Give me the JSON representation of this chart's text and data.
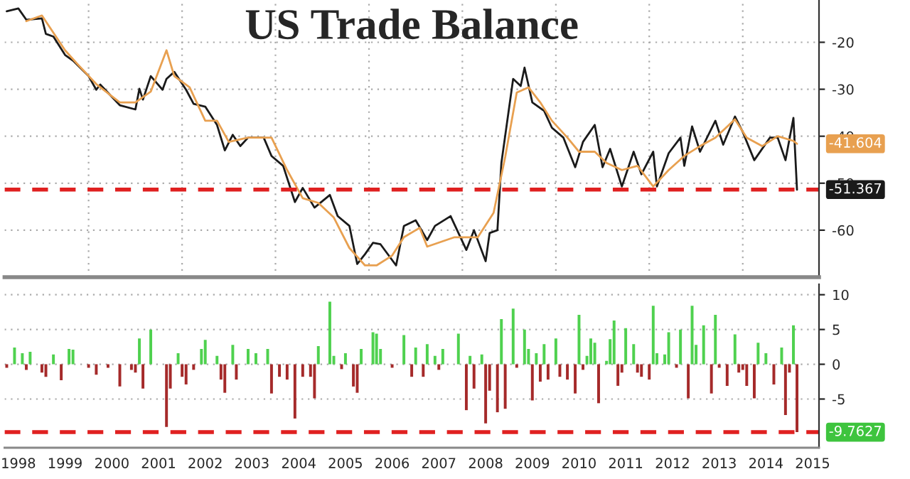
{
  "chart_data": [
    {
      "type": "line",
      "title": "US Trade Balance",
      "tick_labels": "y",
      "grid": true,
      "xlim": [
        "1998-03-15",
        "2015-08-20"
      ],
      "xticks": [
        {
          "value": "2000-01-01",
          "label": null
        },
        {
          "value": "2002-01-01",
          "label": null
        },
        {
          "value": "2004-01-01",
          "label": null
        },
        {
          "value": "2006-01-01",
          "label": null
        },
        {
          "value": "2008-01-01",
          "label": null
        },
        {
          "value": "2010-01-01",
          "label": null
        },
        {
          "value": "2012-01-01",
          "label": null
        },
        {
          "value": "2014-01-01",
          "label": null
        }
      ],
      "ylim": [
        -70,
        -11
      ],
      "yticks": [
        -60,
        -50,
        -40,
        -30,
        -20
      ],
      "series": [
        {
          "color": "#1a1a1a",
          "x": [
            "1998-04",
            "1998-07",
            "1998-09",
            "1999-01",
            "1999-02",
            "1999-04",
            "1999-07",
            "1999-09",
            "2000-01",
            "2000-03",
            "2000-04",
            "2000-09",
            "2001-01",
            "2001-02",
            "2001-03",
            "2001-05",
            "2001-08",
            "2001-09",
            "2001-11",
            "2002-02",
            "2002-04",
            "2002-07",
            "2002-10",
            "2002-12",
            "2003-02",
            "2003-04",
            "2003-06",
            "2003-10",
            "2003-12",
            "2004-03",
            "2004-06",
            "2004-08",
            "2004-11",
            "2005-03",
            "2005-05",
            "2005-08",
            "2005-10",
            "2005-12",
            "2006-02",
            "2006-04",
            "2006-08",
            "2006-10",
            "2007-01",
            "2007-04",
            "2007-06",
            "2007-10",
            "2008-02",
            "2008-04",
            "2008-07",
            "2008-08",
            "2008-10",
            "2008-11",
            "2009-02",
            "2009-04",
            "2009-05",
            "2009-07",
            "2009-10",
            "2009-12",
            "2010-03",
            "2010-06",
            "2010-08",
            "2010-11",
            "2011-01",
            "2011-03",
            "2011-06",
            "2011-09",
            "2011-11",
            "2012-02",
            "2012-03",
            "2012-06",
            "2012-09",
            "2012-10",
            "2012-12",
            "2013-02",
            "2013-06",
            "2013-08",
            "2013-11",
            "2014-01",
            "2014-04",
            "2014-08",
            "2014-10",
            "2014-12",
            "2015-02",
            "2015-03"
          ],
          "values": [
            -13.4,
            -12.8,
            -15.2,
            -14.9,
            -18.2,
            -18.8,
            -22.7,
            -23.9,
            -27.2,
            -30.1,
            -29.0,
            -33.4,
            -34.3,
            -29.9,
            -32.2,
            -27.2,
            -30.1,
            -27.8,
            -26.3,
            -30.1,
            -33.1,
            -33.7,
            -37.6,
            -43.0,
            -39.7,
            -42.1,
            -40.3,
            -40.3,
            -44.2,
            -46.3,
            -54.0,
            -51.0,
            -55.2,
            -52.5,
            -57.0,
            -59.1,
            -67.2,
            -65.1,
            -62.7,
            -63.0,
            -67.5,
            -59.1,
            -57.9,
            -62.1,
            -59.1,
            -57.0,
            -64.2,
            -60.0,
            -66.6,
            -60.6,
            -60.0,
            -45.7,
            -27.8,
            -29.3,
            -25.4,
            -32.8,
            -34.6,
            -38.2,
            -40.3,
            -46.6,
            -41.2,
            -37.6,
            -46.6,
            -42.7,
            -50.7,
            -43.3,
            -48.1,
            -43.3,
            -50.7,
            -43.6,
            -40.3,
            -46.3,
            -37.9,
            -43.3,
            -36.7,
            -41.8,
            -35.8,
            -39.1,
            -45.1,
            -40.3,
            -40.3,
            -45.1,
            -36.1,
            -51.367
          ]
        },
        {
          "color": "#e8a050",
          "x": [
            "1998-09",
            "1999-01",
            "1999-07",
            "1999-10",
            "2000-03",
            "2000-09",
            "2001-01",
            "2001-05",
            "2001-09",
            "2001-11",
            "2002-03",
            "2002-07",
            "2002-10",
            "2003-01",
            "2003-06",
            "2003-12",
            "2004-04",
            "2004-08",
            "2004-12",
            "2005-04",
            "2005-08",
            "2005-12",
            "2006-03",
            "2006-07",
            "2006-10",
            "2007-02",
            "2007-04",
            "2007-11",
            "2008-05",
            "2008-09",
            "2008-12",
            "2009-03",
            "2009-06",
            "2009-09",
            "2009-12",
            "2010-04",
            "2010-07",
            "2010-11",
            "2011-02",
            "2011-06",
            "2011-10",
            "2012-02",
            "2012-06",
            "2012-10",
            "2013-02",
            "2013-06",
            "2013-11",
            "2014-02",
            "2014-06",
            "2014-10",
            "2015-02",
            "2015-03"
          ],
          "values": [
            -15.5,
            -14.3,
            -21.7,
            -24.5,
            -28.9,
            -32.8,
            -32.8,
            -30.5,
            -21.7,
            -27.2,
            -29.6,
            -36.7,
            -36.7,
            -41.2,
            -40.3,
            -40.3,
            -47.2,
            -53.2,
            -54.2,
            -57.3,
            -63.8,
            -67.5,
            -67.5,
            -65.4,
            -61.5,
            -59.5,
            -63.5,
            -61.5,
            -61.5,
            -56.3,
            -44.4,
            -30.7,
            -29.6,
            -32.8,
            -36.7,
            -40.3,
            -43.3,
            -43.3,
            -45.7,
            -47.2,
            -46.3,
            -50.7,
            -47.2,
            -44.2,
            -42.1,
            -40.3,
            -36.4,
            -40.3,
            -42.1,
            -40.0,
            -41.0,
            -41.604
          ]
        }
      ],
      "ref_lines": [
        {
          "axis": "y",
          "value": -51.367,
          "color": "#e02020",
          "line_style": "dashed"
        }
      ],
      "annotations": [
        {
          "text": "-51.367",
          "x": "2015-03",
          "y": -51.367
        },
        {
          "text": "-41.604",
          "x": "2015-03",
          "y": -41.604
        }
      ]
    },
    {
      "type": "bar",
      "grid": "y",
      "xlim": [
        "1998-03-15",
        "2015-08-20"
      ],
      "xticks": [
        {
          "value": "1998-07-01",
          "label": "1998"
        },
        {
          "value": "1999-07-01",
          "label": "1999"
        },
        {
          "value": "2000-07-01",
          "label": "2000"
        },
        {
          "value": "2001-07-01",
          "label": "2001"
        },
        {
          "value": "2002-07-01",
          "label": "2002"
        },
        {
          "value": "2003-07-01",
          "label": "2003"
        },
        {
          "value": "2004-07-01",
          "label": "2004"
        },
        {
          "value": "2005-07-01",
          "label": "2005"
        },
        {
          "value": "2006-07-01",
          "label": "2006"
        },
        {
          "value": "2007-07-01",
          "label": "2007"
        },
        {
          "value": "2008-07-01",
          "label": "2008"
        },
        {
          "value": "2009-07-01",
          "label": "2009"
        },
        {
          "value": "2010-07-01",
          "label": "2010"
        },
        {
          "value": "2011-07-01",
          "label": "2011"
        },
        {
          "value": "2012-07-01",
          "label": "2012"
        },
        {
          "value": "2013-07-01",
          "label": "2013"
        },
        {
          "value": "2014-07-01",
          "label": "2014"
        },
        {
          "value": "2015-07-01",
          "label": "2015"
        }
      ],
      "ylim": [
        -12,
        11.5
      ],
      "yticks": [
        -5,
        0,
        5,
        10
      ],
      "x": [
        "1998-04",
        "1998-06",
        "1998-08",
        "1998-09",
        "1998-10",
        "1999-01",
        "1999-02",
        "1999-04",
        "1999-06",
        "1999-08",
        "1999-09",
        "2000-01",
        "2000-03",
        "2000-06",
        "2000-09",
        "2000-12",
        "2001-01",
        "2001-02",
        "2001-03",
        "2001-05",
        "2001-09",
        "2001-10",
        "2001-12",
        "2002-01",
        "2002-02",
        "2002-04",
        "2002-06",
        "2002-07",
        "2002-10",
        "2002-11",
        "2002-12",
        "2003-02",
        "2003-03",
        "2003-06",
        "2003-08",
        "2003-11",
        "2003-12",
        "2004-02",
        "2004-04",
        "2004-06",
        "2004-08",
        "2004-10",
        "2004-11",
        "2004-12",
        "2005-03",
        "2005-04",
        "2005-06",
        "2005-07",
        "2005-09",
        "2005-10",
        "2005-11",
        "2006-02",
        "2006-03",
        "2006-04",
        "2006-07",
        "2006-10",
        "2006-12",
        "2007-01",
        "2007-03",
        "2007-04",
        "2007-06",
        "2007-07",
        "2007-08",
        "2007-12",
        "2008-02",
        "2008-03",
        "2008-04",
        "2008-06",
        "2008-07",
        "2008-08",
        "2008-10",
        "2008-11",
        "2008-12",
        "2009-02",
        "2009-03",
        "2009-05",
        "2009-06",
        "2009-07",
        "2009-08",
        "2009-09",
        "2009-10",
        "2009-11",
        "2010-01",
        "2010-02",
        "2010-04",
        "2010-06",
        "2010-07",
        "2010-08",
        "2010-09",
        "2010-10",
        "2010-11",
        "2010-12",
        "2011-02",
        "2011-03",
        "2011-04",
        "2011-05",
        "2011-06",
        "2011-07",
        "2011-09",
        "2011-10",
        "2011-11",
        "2012-01",
        "2012-02",
        "2012-03",
        "2012-05",
        "2012-06",
        "2012-08",
        "2012-09",
        "2012-11",
        "2012-12",
        "2013-01",
        "2013-03",
        "2013-05",
        "2013-06",
        "2013-07",
        "2013-09",
        "2013-11",
        "2013-12",
        "2014-01",
        "2014-02",
        "2014-04",
        "2014-05",
        "2014-07",
        "2014-09",
        "2014-11",
        "2014-12",
        "2015-01",
        "2015-02",
        "2015-03"
      ],
      "values": [
        -0.5,
        2.4,
        1.6,
        -0.8,
        1.8,
        -1.2,
        -1.8,
        1.4,
        -2.3,
        2.2,
        2.1,
        -0.5,
        -1.5,
        -0.5,
        -3.2,
        -0.8,
        -1.2,
        3.7,
        -3.5,
        5.0,
        -9.0,
        -3.5,
        1.6,
        -1.8,
        -2.9,
        -0.8,
        2.2,
        3.5,
        1.2,
        -2.2,
        -4.1,
        2.8,
        -2.2,
        2.2,
        1.6,
        2.2,
        -4.2,
        -1.8,
        -2.2,
        -7.8,
        -1.8,
        -1.8,
        -4.9,
        2.6,
        9.0,
        1.2,
        -0.7,
        1.6,
        -3.2,
        -4.1,
        2.2,
        4.6,
        4.4,
        2.2,
        -0.5,
        4.2,
        -1.8,
        2.4,
        -1.8,
        2.9,
        1.2,
        -0.8,
        2.2,
        4.4,
        -6.6,
        1.2,
        -3.5,
        1.4,
        -8.5,
        -3.8,
        -6.9,
        6.5,
        -6.4,
        8.0,
        -0.5,
        5.0,
        2.2,
        -5.2,
        1.6,
        -2.5,
        2.9,
        -2.2,
        3.7,
        -1.8,
        -2.2,
        -4.2,
        7.1,
        -0.8,
        1.2,
        3.7,
        3.1,
        -5.6,
        0.5,
        3.6,
        6.3,
        -3.1,
        -1.2,
        5.2,
        2.9,
        -1.2,
        -1.8,
        -2.2,
        8.4,
        1.6,
        1.4,
        4.6,
        -0.5,
        5.0,
        -4.9,
        8.4,
        2.8,
        5.6,
        -4.2,
        7.1,
        -0.5,
        -3.1,
        4.3,
        -1.2,
        -0.8,
        -3.1,
        -4.9,
        3.1,
        1.6,
        -2.9,
        2.4,
        -7.3,
        -1.2,
        5.6,
        -9.7627
      ],
      "colors": [
        "#a52a2a",
        "#4fd14f",
        "#4fd14f",
        "#a52a2a",
        "#4fd14f",
        "#a52a2a",
        "#a52a2a",
        "#4fd14f",
        "#a52a2a",
        "#4fd14f",
        "#4fd14f",
        "#a52a2a",
        "#a52a2a",
        "#a52a2a",
        "#a52a2a",
        "#a52a2a",
        "#a52a2a",
        "#4fd14f",
        "#a52a2a",
        "#4fd14f",
        "#a52a2a",
        "#a52a2a",
        "#4fd14f",
        "#a52a2a",
        "#a52a2a",
        "#a52a2a",
        "#4fd14f",
        "#4fd14f",
        "#4fd14f",
        "#a52a2a",
        "#a52a2a",
        "#4fd14f",
        "#a52a2a",
        "#4fd14f",
        "#4fd14f",
        "#4fd14f",
        "#a52a2a",
        "#a52a2a",
        "#a52a2a",
        "#a52a2a",
        "#a52a2a",
        "#a52a2a",
        "#a52a2a",
        "#4fd14f",
        "#4fd14f",
        "#4fd14f",
        "#a52a2a",
        "#4fd14f",
        "#a52a2a",
        "#a52a2a",
        "#4fd14f",
        "#4fd14f",
        "#4fd14f",
        "#4fd14f",
        "#a52a2a",
        "#4fd14f",
        "#a52a2a",
        "#4fd14f",
        "#a52a2a",
        "#4fd14f",
        "#4fd14f",
        "#a52a2a",
        "#4fd14f",
        "#4fd14f",
        "#a52a2a",
        "#4fd14f",
        "#a52a2a",
        "#4fd14f",
        "#a52a2a",
        "#a52a2a",
        "#a52a2a",
        "#4fd14f",
        "#a52a2a",
        "#4fd14f",
        "#a52a2a",
        "#4fd14f",
        "#4fd14f",
        "#a52a2a",
        "#4fd14f",
        "#a52a2a",
        "#4fd14f",
        "#a52a2a",
        "#4fd14f",
        "#a52a2a",
        "#a52a2a",
        "#a52a2a",
        "#4fd14f",
        "#a52a2a",
        "#4fd14f",
        "#4fd14f",
        "#4fd14f",
        "#a52a2a",
        "#4fd14f",
        "#4fd14f",
        "#4fd14f",
        "#a52a2a",
        "#a52a2a",
        "#4fd14f",
        "#4fd14f",
        "#a52a2a",
        "#a52a2a",
        "#a52a2a",
        "#4fd14f",
        "#4fd14f",
        "#4fd14f",
        "#4fd14f",
        "#a52a2a",
        "#4fd14f",
        "#a52a2a",
        "#4fd14f",
        "#4fd14f",
        "#4fd14f",
        "#a52a2a",
        "#4fd14f",
        "#a52a2a",
        "#a52a2a",
        "#4fd14f",
        "#a52a2a",
        "#a52a2a",
        "#a52a2a",
        "#a52a2a",
        "#4fd14f",
        "#4fd14f",
        "#a52a2a",
        "#4fd14f",
        "#a52a2a",
        "#a52a2a",
        "#4fd14f",
        "#a52a2a"
      ],
      "ref_lines": [
        {
          "axis": "y",
          "value": -9.7627,
          "color": "#e02020",
          "line_style": "dashed"
        }
      ],
      "annotations": [
        {
          "text": "-9.7627",
          "x": "2015-03",
          "y": -9.7627
        }
      ]
    }
  ]
}
